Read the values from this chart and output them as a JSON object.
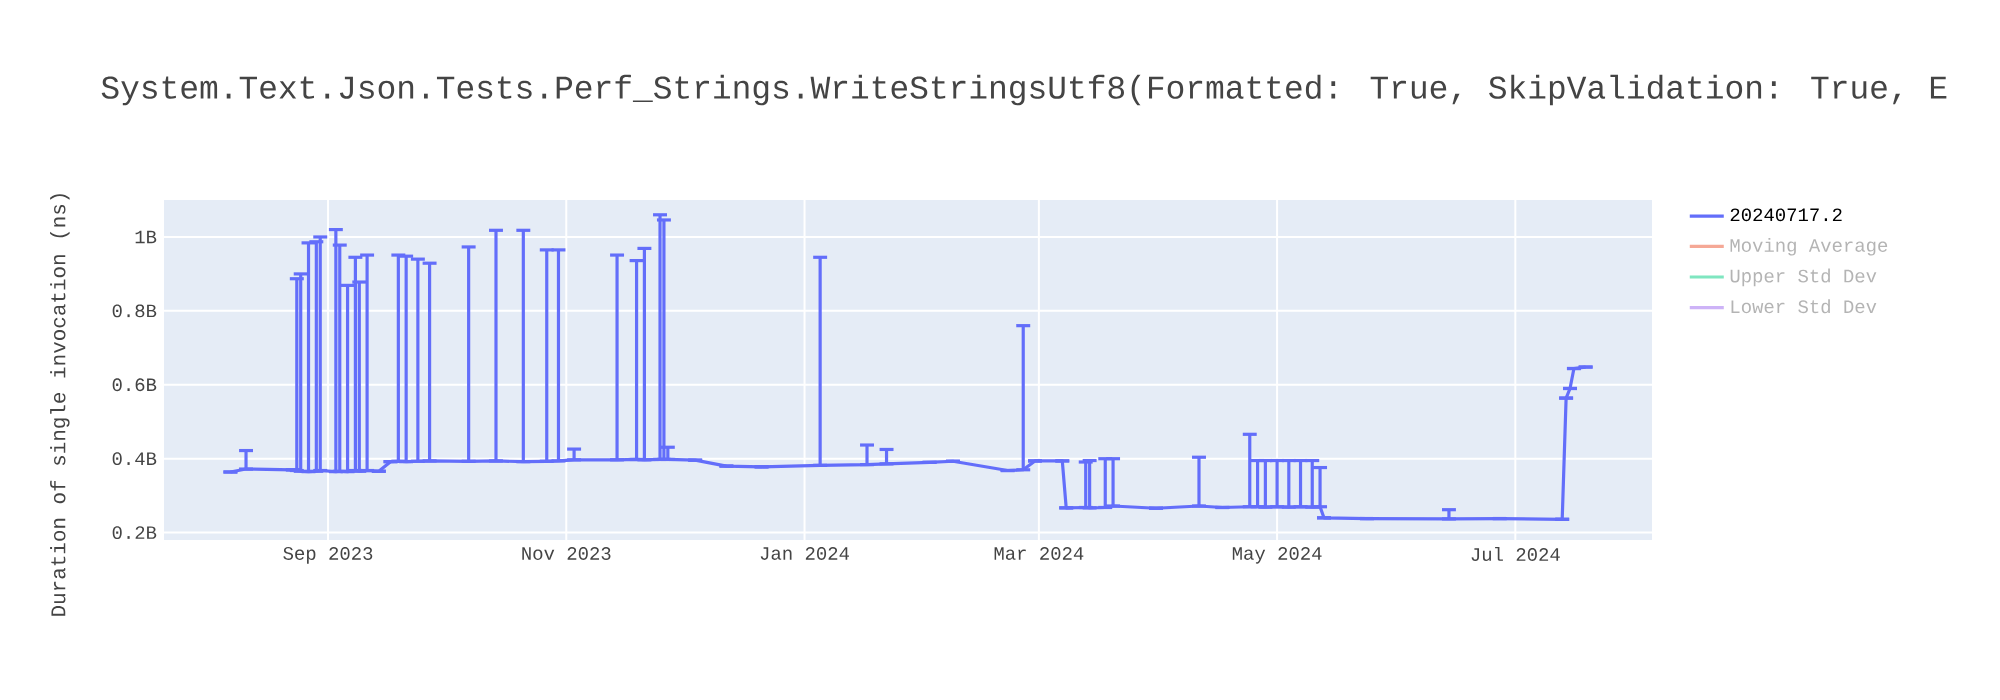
{
  "chart_data": {
    "type": "line",
    "title": "System.Text.Json.Tests.Perf_Strings.WriteStringsUtf8(Formatted: True, SkipValidation: True, E",
    "ylabel": "Duration of single invocation (ns)",
    "xlim": [
      "2023-07-21",
      "2024-08-05"
    ],
    "xticks": [
      {
        "value": "2023-09-01",
        "label": "Sep 2023"
      },
      {
        "value": "2023-11-01",
        "label": "Nov 2023"
      },
      {
        "value": "2024-01-01",
        "label": "Jan 2024"
      },
      {
        "value": "2024-03-01",
        "label": "Mar 2024"
      },
      {
        "value": "2024-05-01",
        "label": "May 2024"
      },
      {
        "value": "2024-07-01",
        "label": "Jul 2024"
      }
    ],
    "ylim": [
      180000000,
      1100000000
    ],
    "yticks": [
      {
        "value": 200000000,
        "label": "0.2B"
      },
      {
        "value": 400000000,
        "label": "0.4B"
      },
      {
        "value": 600000000,
        "label": "0.6B"
      },
      {
        "value": 800000000,
        "label": "0.8B"
      },
      {
        "value": 1000000000,
        "label": "1B"
      }
    ],
    "grid": true,
    "legend": "top right",
    "series": [
      {
        "name": "20240717.2",
        "color": "#636efa",
        "x": [
          "2023-08-07",
          "2023-08-11",
          "2023-08-23",
          "2023-08-24",
          "2023-08-25",
          "2023-08-27",
          "2023-08-29",
          "2023-08-30",
          "2023-09-03",
          "2023-09-04",
          "2023-09-06",
          "2023-09-08",
          "2023-09-09",
          "2023-09-11",
          "2023-09-14",
          "2023-09-17",
          "2023-09-19",
          "2023-09-21",
          "2023-09-24",
          "2023-09-27",
          "2023-10-07",
          "2023-10-14",
          "2023-10-21",
          "2023-10-27",
          "2023-10-30",
          "2023-11-03",
          "2023-11-14",
          "2023-11-19",
          "2023-11-21",
          "2023-11-25",
          "2023-11-26",
          "2023-11-27",
          "2023-12-04",
          "2023-12-12",
          "2023-12-21",
          "2024-01-05",
          "2024-01-17",
          "2024-01-22",
          "2024-02-02",
          "2024-02-08",
          "2024-02-22",
          "2024-02-26",
          "2024-02-29",
          "2024-03-07",
          "2024-03-08",
          "2024-03-13",
          "2024-03-14",
          "2024-03-18",
          "2024-03-20",
          "2024-03-31",
          "2024-04-11",
          "2024-04-17",
          "2024-04-24",
          "2024-04-26",
          "2024-04-28",
          "2024-05-01",
          "2024-05-04",
          "2024-05-07",
          "2024-05-10",
          "2024-05-12",
          "2024-05-13",
          "2024-05-24",
          "2024-06-14",
          "2024-06-27",
          "2024-07-13",
          "2024-07-14",
          "2024-07-15",
          "2024-07-16",
          "2024-07-19"
        ],
        "values": [
          364000000,
          372000000,
          370000000,
          368000000,
          366000000,
          365000000,
          366000000,
          368000000,
          365000000,
          366000000,
          365000000,
          368000000,
          366000000,
          368000000,
          366000000,
          392000000,
          393000000,
          392000000,
          393000000,
          394000000,
          393000000,
          394000000,
          392000000,
          393000000,
          394000000,
          397000000,
          397000000,
          398000000,
          397000000,
          398000000,
          398000000,
          398000000,
          396000000,
          380000000,
          378000000,
          382000000,
          384000000,
          386000000,
          390000000,
          393000000,
          368000000,
          370000000,
          394000000,
          394000000,
          267000000,
          268000000,
          267000000,
          268000000,
          272000000,
          266000000,
          272000000,
          268000000,
          270000000,
          270000000,
          269000000,
          270000000,
          269000000,
          270000000,
          269000000,
          270000000,
          240000000,
          238000000,
          237000000,
          238000000,
          236000000,
          564000000,
          590000000,
          644000000,
          648000000
        ],
        "errors": [
          null,
          [
            372000000,
            422000000
          ],
          null,
          [
            368000000,
            887000000
          ],
          [
            366000000,
            900000000
          ],
          [
            365000000,
            984000000
          ],
          [
            366000000,
            987000000
          ],
          [
            368000000,
            1000000000
          ],
          [
            365000000,
            1020000000
          ],
          [
            366000000,
            978000000
          ],
          [
            365000000,
            869000000
          ],
          [
            368000000,
            945000000
          ],
          [
            366000000,
            878000000
          ],
          [
            368000000,
            951000000
          ],
          null,
          null,
          [
            393000000,
            951000000
          ],
          [
            392000000,
            948000000
          ],
          [
            393000000,
            940000000
          ],
          [
            394000000,
            929000000
          ],
          [
            393000000,
            973000000
          ],
          [
            394000000,
            1018000000
          ],
          [
            392000000,
            1018000000
          ],
          [
            393000000,
            965000000
          ],
          [
            394000000,
            965000000
          ],
          [
            397000000,
            426000000
          ],
          [
            397000000,
            951000000
          ],
          [
            398000000,
            936000000
          ],
          [
            397000000,
            969000000
          ],
          [
            398000000,
            1060000000
          ],
          [
            398000000,
            1046000000
          ],
          [
            398000000,
            431000000
          ],
          null,
          null,
          null,
          [
            382000000,
            945000000
          ],
          [
            384000000,
            437000000
          ],
          [
            386000000,
            425000000
          ],
          null,
          null,
          null,
          [
            370000000,
            760000000
          ],
          null,
          null,
          null,
          [
            268000000,
            391000000
          ],
          [
            267000000,
            395000000
          ],
          [
            268000000,
            400000000
          ],
          [
            272000000,
            400000000
          ],
          null,
          [
            272000000,
            404000000
          ],
          null,
          [
            270000000,
            466000000
          ],
          [
            270000000,
            395000000
          ],
          [
            269000000,
            395000000
          ],
          [
            270000000,
            395000000
          ],
          [
            269000000,
            395000000
          ],
          [
            270000000,
            395000000
          ],
          [
            269000000,
            395000000
          ],
          [
            270000000,
            376000000
          ],
          null,
          null,
          [
            237000000,
            262000000
          ],
          null,
          null,
          null,
          null,
          null,
          null
        ]
      },
      {
        "name": "Moving Average",
        "color": "#f5a896"
      },
      {
        "name": "Upper Std Dev",
        "color": "#7fe6c0"
      },
      {
        "name": "Lower Std Dev",
        "color": "#cdb3f7"
      }
    ]
  }
}
